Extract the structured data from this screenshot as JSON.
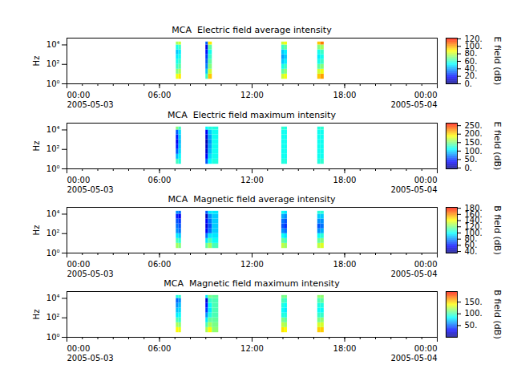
{
  "chart_data": [
    {
      "type": "heatmap",
      "title": "MCA  Electric field average intensity",
      "ylabel": "Hz",
      "log": "y",
      "xlim": [
        "2005-05-03 00:00",
        "2005-05-04 00:00"
      ],
      "xticks": [
        {
          "value": "2005-05-03 00:00",
          "label": "00:00\n2005-05-03"
        },
        {
          "value": "2005-05-03 06:00",
          "label": "06:00"
        },
        {
          "value": "2005-05-03 12:00",
          "label": "12:00"
        },
        {
          "value": "2005-05-03 18:00",
          "label": "18:00"
        },
        {
          "value": "2005-05-04 00:00",
          "label": "00:00\n2005-05-04"
        }
      ],
      "ylim": [
        1,
        50000
      ],
      "yticks": [
        {
          "value": 1,
          "label": "10⁰"
        },
        {
          "value": 100,
          "label": "10²"
        },
        {
          "value": 10000,
          "label": "10⁴"
        }
      ],
      "cells": {
        "time_bins": [
          [
            "2005-05-03 07:05",
            "2005-05-03 07:15"
          ],
          [
            "2005-05-03 07:15",
            "2005-05-03 07:25"
          ],
          [
            "2005-05-03 09:00",
            "2005-05-03 09:10"
          ],
          [
            "2005-05-03 09:10",
            "2005-05-03 09:25"
          ],
          [
            "2005-05-03 09:25",
            "2005-05-03 09:50"
          ],
          [
            "2005-05-03 13:55",
            "2005-05-03 14:05"
          ],
          [
            "2005-05-03 14:05",
            "2005-05-03 14:17"
          ],
          [
            "2005-05-03 16:15",
            "2005-05-03 16:27"
          ],
          [
            "2005-05-03 16:27",
            "2005-05-03 16:40"
          ]
        ],
        "freq_edges": [
          3,
          10,
          31.6,
          100,
          316,
          1000,
          3160,
          10000,
          20000
        ],
        "values": [
          [
            85,
            70,
            60,
            55,
            50,
            45,
            55,
            75
          ],
          [
            90,
            75,
            65,
            60,
            55,
            50,
            60,
            80
          ],
          [
            60,
            45,
            35,
            30,
            25,
            20,
            15,
            30
          ],
          [
            95,
            80,
            70,
            65,
            60,
            55,
            65,
            90
          ],
          [
            null,
            null,
            null,
            null,
            null,
            null,
            null,
            null
          ],
          [
            80,
            65,
            55,
            45,
            40,
            45,
            60,
            80
          ],
          [
            85,
            70,
            60,
            50,
            45,
            50,
            65,
            85
          ],
          [
            95,
            80,
            65,
            55,
            50,
            55,
            70,
            95
          ],
          [
            100,
            85,
            70,
            60,
            55,
            60,
            75,
            105
          ]
        ]
      },
      "colorbar": {
        "label": "E field (dB)",
        "range": [
          0,
          122
        ],
        "ticks": [
          {
            "value": 0,
            "label": "0."
          },
          {
            "value": 20,
            "label": "20."
          },
          {
            "value": 40,
            "label": "40."
          },
          {
            "value": 60,
            "label": "60."
          },
          {
            "value": 80,
            "label": "80."
          },
          {
            "value": 100,
            "label": "100."
          },
          {
            "value": 120,
            "label": "120."
          }
        ]
      }
    },
    {
      "type": "heatmap",
      "title": "MCA  Electric field maximum intensity",
      "ylabel": "Hz",
      "log": "y",
      "xlim": [
        "2005-05-03 00:00",
        "2005-05-04 00:00"
      ],
      "xticks": [
        {
          "value": "2005-05-03 00:00",
          "label": "00:00\n2005-05-03"
        },
        {
          "value": "2005-05-03 06:00",
          "label": "06:00"
        },
        {
          "value": "2005-05-03 12:00",
          "label": "12:00"
        },
        {
          "value": "2005-05-03 18:00",
          "label": "18:00"
        },
        {
          "value": "2005-05-04 00:00",
          "label": "00:00\n2005-05-04"
        }
      ],
      "ylim": [
        1,
        50000
      ],
      "yticks": [
        {
          "value": 1,
          "label": "10⁰"
        },
        {
          "value": 100,
          "label": "10²"
        },
        {
          "value": 10000,
          "label": "10⁴"
        }
      ],
      "cells": {
        "time_bins": [
          [
            "2005-05-03 07:05",
            "2005-05-03 07:15"
          ],
          [
            "2005-05-03 07:15",
            "2005-05-03 07:25"
          ],
          [
            "2005-05-03 09:00",
            "2005-05-03 09:10"
          ],
          [
            "2005-05-03 09:10",
            "2005-05-03 09:25"
          ],
          [
            "2005-05-03 09:25",
            "2005-05-03 09:50"
          ],
          [
            "2005-05-03 13:55",
            "2005-05-03 14:05"
          ],
          [
            "2005-05-03 14:05",
            "2005-05-03 14:17"
          ],
          [
            "2005-05-03 16:15",
            "2005-05-03 16:27"
          ],
          [
            "2005-05-03 16:27",
            "2005-05-03 16:40"
          ]
        ],
        "freq_edges": [
          3,
          10,
          31.6,
          100,
          316,
          1000,
          3160,
          10000,
          20000
        ],
        "values": [
          [
            130,
            90,
            60,
            40,
            30,
            40,
            60,
            150
          ],
          [
            120,
            110,
            100,
            95,
            90,
            95,
            100,
            130
          ],
          [
            60,
            30,
            20,
            15,
            10,
            20,
            30,
            110
          ],
          [
            110,
            100,
            90,
            85,
            80,
            85,
            95,
            120
          ],
          [
            120,
            115,
            115,
            115,
            115,
            115,
            115,
            120
          ],
          [
            120,
            115,
            115,
            115,
            115,
            115,
            115,
            125
          ],
          [
            120,
            115,
            115,
            115,
            115,
            115,
            115,
            120
          ],
          [
            120,
            115,
            115,
            115,
            115,
            115,
            115,
            120
          ],
          [
            125,
            115,
            115,
            115,
            115,
            115,
            115,
            125
          ]
        ]
      },
      "colorbar": {
        "label": "E field (dB)",
        "range": [
          -5,
          265
        ],
        "ticks": [
          {
            "value": 0,
            "label": "0."
          },
          {
            "value": 50,
            "label": "50."
          },
          {
            "value": 100,
            "label": "100."
          },
          {
            "value": 150,
            "label": "150."
          },
          {
            "value": 200,
            "label": "200."
          },
          {
            "value": 250,
            "label": "250."
          }
        ]
      }
    },
    {
      "type": "heatmap",
      "title": "MCA  Magnetic field average intensity",
      "ylabel": "Hz",
      "log": "y",
      "xlim": [
        "2005-05-03 00:00",
        "2005-05-04 00:00"
      ],
      "xticks": [
        {
          "value": "2005-05-03 00:00",
          "label": "00:00\n2005-05-03"
        },
        {
          "value": "2005-05-03 06:00",
          "label": "06:00"
        },
        {
          "value": "2005-05-03 12:00",
          "label": "12:00"
        },
        {
          "value": "2005-05-03 18:00",
          "label": "18:00"
        },
        {
          "value": "2005-05-04 00:00",
          "label": "00:00\n2005-05-04"
        }
      ],
      "ylim": [
        1,
        50000
      ],
      "yticks": [
        {
          "value": 1,
          "label": "10⁰"
        },
        {
          "value": 100,
          "label": "10²"
        },
        {
          "value": 10000,
          "label": "10⁴"
        }
      ],
      "cells": {
        "time_bins": [
          [
            "2005-05-03 07:05",
            "2005-05-03 07:15"
          ],
          [
            "2005-05-03 07:15",
            "2005-05-03 07:25"
          ],
          [
            "2005-05-03 09:00",
            "2005-05-03 09:10"
          ],
          [
            "2005-05-03 09:10",
            "2005-05-03 09:25"
          ],
          [
            "2005-05-03 09:25",
            "2005-05-03 09:50"
          ],
          [
            "2005-05-03 13:55",
            "2005-05-03 14:05"
          ],
          [
            "2005-05-03 14:05",
            "2005-05-03 14:17"
          ],
          [
            "2005-05-03 16:15",
            "2005-05-03 16:27"
          ],
          [
            "2005-05-03 16:27",
            "2005-05-03 16:40"
          ]
        ],
        "freq_edges": [
          3,
          10,
          31.6,
          100,
          316,
          1000,
          3160,
          10000,
          20000
        ],
        "values": [
          [
            125,
            110,
            95,
            80,
            75,
            70,
            60,
            80
          ],
          [
            120,
            105,
            90,
            75,
            70,
            65,
            55,
            75
          ],
          [
            115,
            95,
            75,
            55,
            50,
            55,
            45,
            70
          ],
          [
            125,
            110,
            95,
            75,
            70,
            75,
            80,
            95
          ],
          [
            110,
            100,
            95,
            90,
            90,
            90,
            90,
            95
          ],
          [
            130,
            115,
            100,
            80,
            70,
            75,
            85,
            100
          ],
          [
            125,
            110,
            95,
            75,
            65,
            70,
            80,
            95
          ],
          [
            130,
            115,
            100,
            80,
            70,
            80,
            90,
            105
          ],
          [
            135,
            120,
            105,
            85,
            75,
            80,
            90,
            105
          ]
        ]
      },
      "colorbar": {
        "label": "B field (dB)",
        "range": [
          35,
          183
        ],
        "ticks": [
          {
            "value": 40,
            "label": "40."
          },
          {
            "value": 60,
            "label": "60."
          },
          {
            "value": 80,
            "label": "80."
          },
          {
            "value": 100,
            "label": "100."
          },
          {
            "value": 120,
            "label": "120."
          },
          {
            "value": 140,
            "label": "140."
          },
          {
            "value": 160,
            "label": "160."
          },
          {
            "value": 180,
            "label": "180."
          }
        ]
      }
    },
    {
      "type": "heatmap",
      "title": "MCA  Magnetic field maximum intensity",
      "ylabel": "Hz",
      "log": "y",
      "xlim": [
        "2005-05-03 00:00",
        "2005-05-04 00:00"
      ],
      "xticks": [
        {
          "value": "2005-05-03 00:00",
          "label": "00:00\n2005-05-03"
        },
        {
          "value": "2005-05-03 06:00",
          "label": "06:00"
        },
        {
          "value": "2005-05-03 12:00",
          "label": "12:00"
        },
        {
          "value": "2005-05-03 18:00",
          "label": "18:00"
        },
        {
          "value": "2005-05-04 00:00",
          "label": "00:00\n2005-05-04"
        }
      ],
      "ylim": [
        1,
        50000
      ],
      "yticks": [
        {
          "value": 1,
          "label": "10⁰"
        },
        {
          "value": 100,
          "label": "10²"
        },
        {
          "value": 10000,
          "label": "10⁴"
        }
      ],
      "cells": {
        "time_bins": [
          [
            "2005-05-03 07:05",
            "2005-05-03 07:15"
          ],
          [
            "2005-05-03 07:15",
            "2005-05-03 07:25"
          ],
          [
            "2005-05-03 09:00",
            "2005-05-03 09:10"
          ],
          [
            "2005-05-03 09:10",
            "2005-05-03 09:25"
          ],
          [
            "2005-05-03 09:25",
            "2005-05-03 09:50"
          ],
          [
            "2005-05-03 13:55",
            "2005-05-03 14:05"
          ],
          [
            "2005-05-03 14:05",
            "2005-05-03 14:17"
          ],
          [
            "2005-05-03 16:15",
            "2005-05-03 16:27"
          ],
          [
            "2005-05-03 16:27",
            "2005-05-03 16:40"
          ]
        ],
        "freq_edges": [
          3,
          10,
          31.6,
          100,
          316,
          1000,
          3160,
          10000,
          20000
        ],
        "values": [
          [
            140,
            120,
            100,
            80,
            70,
            60,
            50,
            90
          ],
          [
            135,
            115,
            95,
            85,
            75,
            70,
            60,
            95
          ],
          [
            120,
            100,
            80,
            60,
            40,
            30,
            20,
            80
          ],
          [
            140,
            120,
            105,
            90,
            80,
            85,
            95,
            110
          ],
          [
            115,
            110,
            105,
            100,
            100,
            100,
            100,
            105
          ],
          [
            145,
            125,
            110,
            90,
            85,
            90,
            100,
            110
          ],
          [
            140,
            120,
            105,
            90,
            80,
            85,
            95,
            110
          ],
          [
            150,
            130,
            110,
            95,
            85,
            90,
            100,
            115
          ],
          [
            150,
            130,
            115,
            95,
            85,
            90,
            105,
            115
          ]
        ]
      },
      "colorbar": {
        "label": "B field (dB)",
        "range": [
          0,
          195
        ],
        "ticks": [
          {
            "value": 50,
            "label": "50."
          },
          {
            "value": 100,
            "label": "100."
          },
          {
            "value": 150,
            "label": "150."
          }
        ]
      }
    }
  ]
}
